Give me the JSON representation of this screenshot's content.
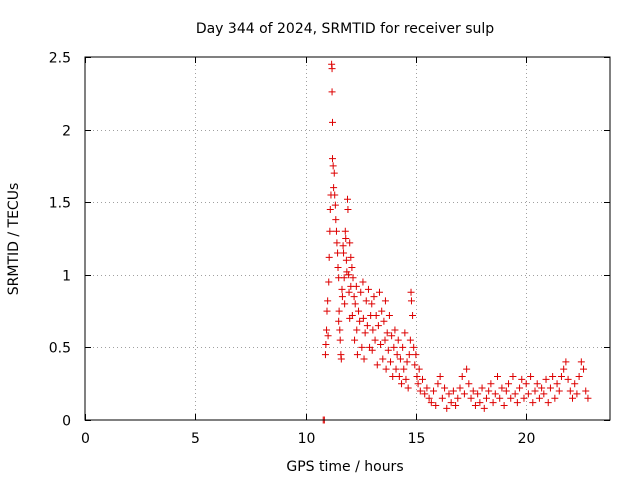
{
  "chart_data": {
    "type": "scatter",
    "title": "Day 344 of 2024, SRMTID for receiver sulp",
    "xlabel": "GPS time / hours",
    "ylabel": "SRMTID / TECUs",
    "xlim": [
      0,
      23.8
    ],
    "ylim": [
      0,
      2.5
    ],
    "xticks": [
      0,
      5,
      10,
      15,
      20
    ],
    "xtick_labels": [
      "0",
      "5",
      "10",
      "15",
      "20"
    ],
    "yticks": [
      0,
      0.5,
      1,
      1.5,
      2,
      2.5
    ],
    "ytick_labels": [
      "0",
      "0.5",
      "1",
      "1.5",
      "2",
      "2.5"
    ],
    "grid": true,
    "marker": "plus",
    "color": "#dd0000",
    "series": [
      {
        "name": "sulp",
        "points": [
          [
            10.8,
            0.0
          ],
          [
            10.85,
            0.0
          ],
          [
            10.9,
            0.45
          ],
          [
            10.92,
            0.52
          ],
          [
            10.95,
            0.62
          ],
          [
            10.97,
            0.75
          ],
          [
            11.0,
            0.82
          ],
          [
            11.02,
            0.58
          ],
          [
            11.05,
            0.95
          ],
          [
            11.07,
            1.12
          ],
          [
            11.1,
            1.3
          ],
          [
            11.12,
            1.45
          ],
          [
            11.15,
            1.55
          ],
          [
            11.18,
            2.45
          ],
          [
            11.2,
            2.42
          ],
          [
            11.2,
            2.26
          ],
          [
            11.22,
            2.05
          ],
          [
            11.22,
            1.8
          ],
          [
            11.25,
            1.75
          ],
          [
            11.27,
            1.6
          ],
          [
            11.3,
            1.7
          ],
          [
            11.32,
            1.55
          ],
          [
            11.35,
            1.48
          ],
          [
            11.37,
            1.38
          ],
          [
            11.4,
            1.3
          ],
          [
            11.42,
            1.22
          ],
          [
            11.45,
            1.15
          ],
          [
            11.47,
            1.05
          ],
          [
            11.5,
            0.98
          ],
          [
            11.5,
            0.68
          ],
          [
            11.52,
            0.75
          ],
          [
            11.55,
            0.62
          ],
          [
            11.57,
            0.55
          ],
          [
            11.6,
            0.45
          ],
          [
            11.62,
            0.42
          ],
          [
            11.65,
            0.9
          ],
          [
            11.67,
            0.85
          ],
          [
            11.7,
            1.2
          ],
          [
            11.72,
            1.15
          ],
          [
            11.75,
            0.98
          ],
          [
            11.77,
            0.8
          ],
          [
            11.8,
            1.3
          ],
          [
            11.82,
            1.25
          ],
          [
            11.85,
            1.1
          ],
          [
            11.87,
            1.02
          ],
          [
            11.9,
            1.52
          ],
          [
            11.92,
            1.45
          ],
          [
            11.95,
            1.0
          ],
          [
            11.97,
            0.88
          ],
          [
            12.0,
            1.22
          ],
          [
            12.0,
            0.7
          ],
          [
            12.05,
            0.92
          ],
          [
            12.05,
            1.12
          ],
          [
            12.1,
            1.05
          ],
          [
            12.12,
            0.72
          ],
          [
            12.15,
            0.98
          ],
          [
            12.2,
            0.85
          ],
          [
            12.22,
            0.55
          ],
          [
            12.25,
            0.8
          ],
          [
            12.3,
            0.92
          ],
          [
            12.32,
            0.62
          ],
          [
            12.35,
            0.45
          ],
          [
            12.4,
            0.75
          ],
          [
            12.45,
            0.68
          ],
          [
            12.5,
            0.88
          ],
          [
            12.55,
            0.5
          ],
          [
            12.6,
            0.95
          ],
          [
            12.62,
            0.7
          ],
          [
            12.65,
            0.42
          ],
          [
            12.7,
            0.6
          ],
          [
            12.75,
            0.82
          ],
          [
            12.8,
            0.65
          ],
          [
            12.85,
            0.9
          ],
          [
            12.9,
            0.5
          ],
          [
            12.95,
            0.72
          ],
          [
            13.0,
            0.8
          ],
          [
            13.02,
            0.48
          ],
          [
            13.05,
            0.62
          ],
          [
            13.1,
            0.85
          ],
          [
            13.15,
            0.55
          ],
          [
            13.2,
            0.72
          ],
          [
            13.25,
            0.38
          ],
          [
            13.3,
            0.65
          ],
          [
            13.35,
            0.88
          ],
          [
            13.4,
            0.52
          ],
          [
            13.45,
            0.75
          ],
          [
            13.5,
            0.42
          ],
          [
            13.55,
            0.68
          ],
          [
            13.6,
            0.55
          ],
          [
            13.62,
            0.82
          ],
          [
            13.65,
            0.35
          ],
          [
            13.7,
            0.6
          ],
          [
            13.75,
            0.48
          ],
          [
            13.8,
            0.72
          ],
          [
            13.85,
            0.4
          ],
          [
            13.9,
            0.58
          ],
          [
            13.95,
            0.3
          ],
          [
            14.0,
            0.5
          ],
          [
            14.05,
            0.62
          ],
          [
            14.1,
            0.35
          ],
          [
            14.15,
            0.45
          ],
          [
            14.2,
            0.55
          ],
          [
            14.25,
            0.3
          ],
          [
            14.3,
            0.42
          ],
          [
            14.35,
            0.25
          ],
          [
            14.4,
            0.5
          ],
          [
            14.45,
            0.35
          ],
          [
            14.5,
            0.6
          ],
          [
            14.55,
            0.28
          ],
          [
            14.6,
            0.4
          ],
          [
            14.65,
            0.22
          ],
          [
            14.7,
            0.45
          ],
          [
            14.75,
            0.55
          ],
          [
            14.78,
            0.88
          ],
          [
            14.8,
            0.82
          ],
          [
            14.85,
            0.72
          ],
          [
            14.9,
            0.5
          ],
          [
            14.95,
            0.38
          ],
          [
            15.0,
            0.45
          ],
          [
            15.05,
            0.3
          ],
          [
            15.1,
            0.25
          ],
          [
            15.15,
            0.35
          ],
          [
            15.2,
            0.2
          ],
          [
            15.3,
            0.28
          ],
          [
            15.4,
            0.18
          ],
          [
            15.5,
            0.22
          ],
          [
            15.6,
            0.15
          ],
          [
            15.7,
            0.12
          ],
          [
            15.8,
            0.2
          ],
          [
            15.9,
            0.1
          ],
          [
            16.0,
            0.25
          ],
          [
            16.1,
            0.3
          ],
          [
            16.2,
            0.15
          ],
          [
            16.3,
            0.22
          ],
          [
            16.4,
            0.08
          ],
          [
            16.5,
            0.18
          ],
          [
            16.6,
            0.12
          ],
          [
            16.7,
            0.2
          ],
          [
            16.8,
            0.1
          ],
          [
            16.9,
            0.15
          ],
          [
            17.0,
            0.22
          ],
          [
            17.1,
            0.3
          ],
          [
            17.2,
            0.18
          ],
          [
            17.3,
            0.35
          ],
          [
            17.4,
            0.25
          ],
          [
            17.5,
            0.15
          ],
          [
            17.6,
            0.2
          ],
          [
            17.7,
            0.1
          ],
          [
            17.8,
            0.18
          ],
          [
            17.9,
            0.12
          ],
          [
            18.0,
            0.22
          ],
          [
            18.1,
            0.08
          ],
          [
            18.2,
            0.15
          ],
          [
            18.3,
            0.2
          ],
          [
            18.4,
            0.25
          ],
          [
            18.5,
            0.12
          ],
          [
            18.6,
            0.18
          ],
          [
            18.7,
            0.3
          ],
          [
            18.8,
            0.15
          ],
          [
            18.9,
            0.22
          ],
          [
            19.0,
            0.1
          ],
          [
            19.1,
            0.2
          ],
          [
            19.2,
            0.25
          ],
          [
            19.3,
            0.15
          ],
          [
            19.4,
            0.3
          ],
          [
            19.5,
            0.18
          ],
          [
            19.6,
            0.12
          ],
          [
            19.7,
            0.22
          ],
          [
            19.8,
            0.28
          ],
          [
            19.9,
            0.15
          ],
          [
            20.0,
            0.25
          ],
          [
            20.1,
            0.18
          ],
          [
            20.2,
            0.3
          ],
          [
            20.3,
            0.12
          ],
          [
            20.4,
            0.2
          ],
          [
            20.5,
            0.25
          ],
          [
            20.6,
            0.15
          ],
          [
            20.7,
            0.22
          ],
          [
            20.8,
            0.18
          ],
          [
            20.9,
            0.28
          ],
          [
            21.0,
            0.12
          ],
          [
            21.1,
            0.22
          ],
          [
            21.2,
            0.3
          ],
          [
            21.3,
            0.15
          ],
          [
            21.4,
            0.25
          ],
          [
            21.5,
            0.2
          ],
          [
            21.6,
            0.3
          ],
          [
            21.7,
            0.35
          ],
          [
            21.8,
            0.4
          ],
          [
            21.9,
            0.28
          ],
          [
            22.0,
            0.2
          ],
          [
            22.1,
            0.15
          ],
          [
            22.2,
            0.25
          ],
          [
            22.3,
            0.18
          ],
          [
            22.4,
            0.3
          ],
          [
            22.5,
            0.4
          ],
          [
            22.6,
            0.35
          ],
          [
            22.7,
            0.2
          ],
          [
            22.8,
            0.15
          ]
        ]
      }
    ]
  }
}
